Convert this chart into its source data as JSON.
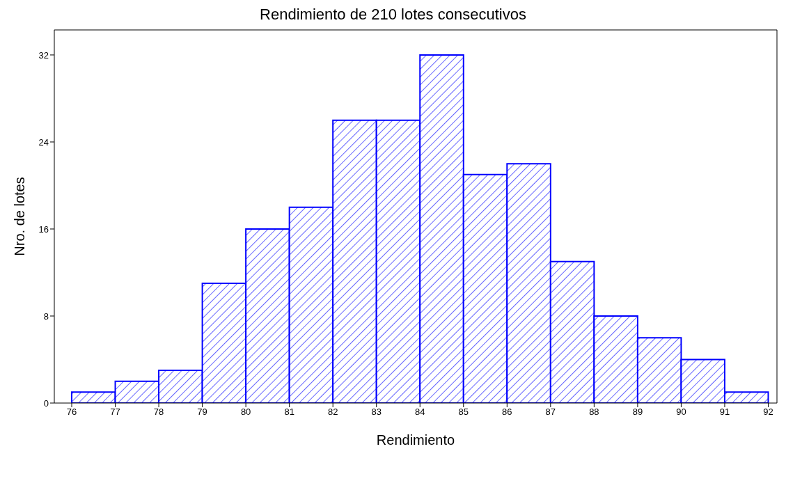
{
  "chart_data": {
    "type": "histogram",
    "title": "Rendimiento de 210 lotes consecutivos",
    "xlabel": "Rendimiento",
    "ylabel": "Nro. de lotes",
    "bins": [
      76,
      77,
      78,
      79,
      80,
      81,
      82,
      83,
      84,
      85,
      86,
      87,
      88,
      89,
      90,
      91,
      92
    ],
    "values": [
      1,
      2,
      3,
      11,
      16,
      18,
      26,
      26,
      32,
      21,
      22,
      13,
      8,
      6,
      4,
      1
    ],
    "color": "#0000ff",
    "xlim": [
      75.6,
      92.2
    ],
    "xticks": [
      76,
      77,
      78,
      79,
      80,
      81,
      82,
      83,
      84,
      85,
      86,
      87,
      88,
      89,
      90,
      91,
      92
    ],
    "ylim": [
      0,
      34.3
    ],
    "yticks": [
      0,
      8,
      16,
      24,
      32
    ],
    "grid": false
  }
}
